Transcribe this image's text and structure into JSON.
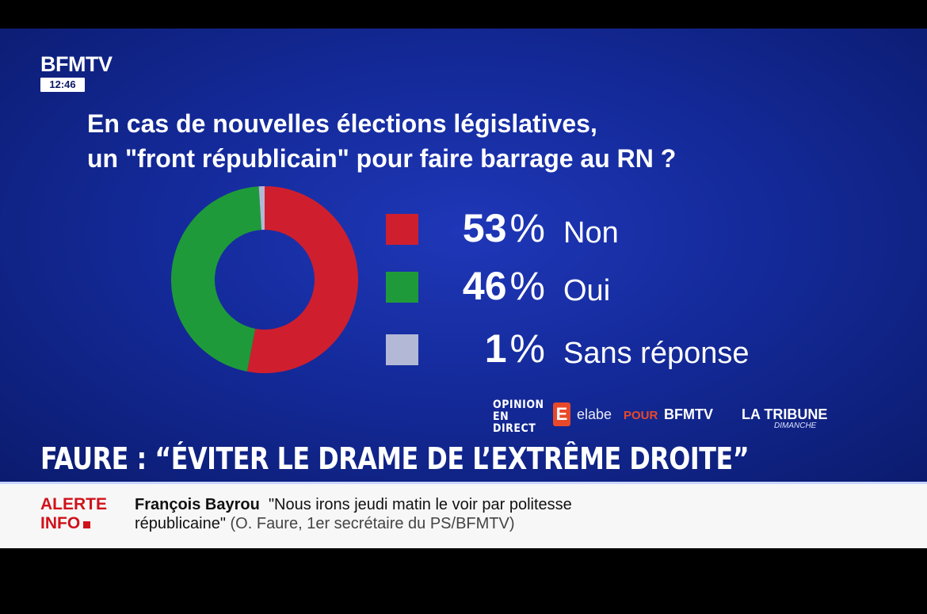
{
  "channel": {
    "logo": "BFMTV",
    "time": "12:46"
  },
  "question": {
    "line1": "En cas de nouvelles élections législatives,",
    "line2": "un \"front républicain\" pour faire barrage au RN ?"
  },
  "chart_data": {
    "type": "pie",
    "title": "En cas de nouvelles élections législatives, un \"front républicain\" pour faire barrage au RN ?",
    "categories": [
      "Non",
      "Oui",
      "Sans réponse"
    ],
    "values": [
      53,
      46,
      1
    ],
    "unit": "%",
    "colors": [
      "#cf1f2e",
      "#1f9a3a",
      "#b3b8d6"
    ],
    "donut": true
  },
  "legend": [
    {
      "value": "53",
      "symbol": "%",
      "label": "Non",
      "color": "#cf1f2e"
    },
    {
      "value": "46",
      "symbol": "%",
      "label": "Oui",
      "color": "#1f9a3a"
    },
    {
      "value": "1",
      "symbol": "%",
      "label": "Sans réponse",
      "color": "#b3b8d6"
    }
  ],
  "sources": {
    "opinion_line1": "OPINION",
    "opinion_line2": "EN DIRECT",
    "elabe_icon": "E",
    "elabe": "elabe",
    "pour": "POUR",
    "bfmtv": "BFMTV",
    "tribune": "LA TRIBUNE",
    "dimanche": "DIMANCHE"
  },
  "headline": "FAURE : “ÉVITER LE DRAME DE L’EXTRÊME DROITE”",
  "ticker": {
    "alert_line1": "ALERTE",
    "alert_line2": "INFO",
    "name": "François Bayrou",
    "quote_line1": "\"Nous irons jeudi matin le voir par politesse",
    "quote_line2": "républicaine\"",
    "source": "(O. Faure, 1er secrétaire du PS/BFMTV)"
  }
}
